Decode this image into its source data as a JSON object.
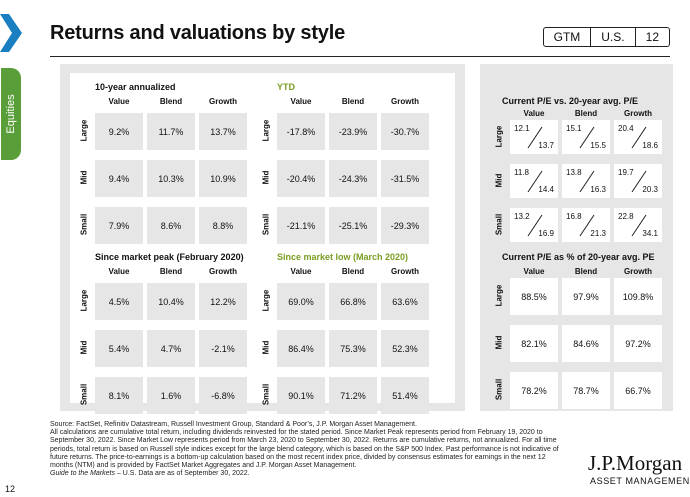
{
  "header": {
    "title": "Returns and valuations by style",
    "badges": [
      "GTM",
      "U.S.",
      "12"
    ]
  },
  "side_tab": "Equities",
  "page_number": "12",
  "columns": [
    "Value",
    "Blend",
    "Growth"
  ],
  "rows": [
    "Large",
    "Mid",
    "Small"
  ],
  "sections": {
    "annual10": {
      "title": "10-year annualized",
      "values": [
        [
          "9.2%",
          "11.7%",
          "13.7%"
        ],
        [
          "9.4%",
          "10.3%",
          "10.9%"
        ],
        [
          "7.9%",
          "8.6%",
          "8.8%"
        ]
      ]
    },
    "ytd": {
      "title": "YTD",
      "values": [
        [
          "-17.8%",
          "-23.9%",
          "-30.7%"
        ],
        [
          "-20.4%",
          "-24.3%",
          "-31.5%"
        ],
        [
          "-21.1%",
          "-25.1%",
          "-29.3%"
        ]
      ]
    },
    "peak": {
      "title": "Since market peak (February 2020)",
      "values": [
        [
          "4.5%",
          "10.4%",
          "12.2%"
        ],
        [
          "5.4%",
          "4.7%",
          "-2.1%"
        ],
        [
          "8.1%",
          "1.6%",
          "-6.8%"
        ]
      ]
    },
    "low": {
      "title": "Since market low (March 2020)",
      "values": [
        [
          "69.0%",
          "66.8%",
          "63.6%"
        ],
        [
          "86.4%",
          "75.3%",
          "52.3%"
        ],
        [
          "90.1%",
          "71.2%",
          "51.4%"
        ]
      ]
    }
  },
  "pe_vs_avg": {
    "title": "Current P/E vs. 20-year avg. P/E",
    "current": [
      [
        "12.1",
        "15.1",
        "20.4"
      ],
      [
        "11.8",
        "13.8",
        "19.7"
      ],
      [
        "13.2",
        "16.8",
        "22.8"
      ]
    ],
    "average": [
      [
        "13.7",
        "15.5",
        "18.6"
      ],
      [
        "14.4",
        "16.3",
        "20.3"
      ],
      [
        "16.9",
        "21.3",
        "34.1"
      ]
    ]
  },
  "pe_pct": {
    "title": "Current P/E as % of 20-year avg. PE",
    "values": [
      [
        "88.5%",
        "97.9%",
        "109.8%"
      ],
      [
        "82.1%",
        "84.6%",
        "97.2%"
      ],
      [
        "78.2%",
        "78.7%",
        "66.7%"
      ]
    ]
  },
  "footnote": {
    "source": "Source: FactSet, Refinitiv Datastream, Russell Investment Group, Standard & Poor’s, J.P. Morgan Asset Management.",
    "body": "All calculations are cumulative total return, including dividends reinvested for the stated period. Since Market Peak represents period from February 19, 2020 to September 30, 2022. Since Market Low represents period from March 23, 2020 to September 30, 2022. Returns are cumulative returns, not annualized. For all time periods, total return is based on Russell style indices except for the large blend category, which is based on the S&P 500 Index. Past performance is not indicative of future returns. The price-to-earnings is a bottom-up calculation based on the most recent index price, divided by consensus estimates for earnings in the next 12 months (NTM) and is provided by FactSet Market Aggregates and J.P. Morgan Asset Management.",
    "guide": "Guide to the Markets",
    "asof": " – U.S. Data are as of September 30, 2022."
  },
  "logo": {
    "line1": "J.P.Morgan",
    "line2": "ASSET MANAGEMENT"
  },
  "colors": {
    "accent_blue": "#1a7fc1",
    "tab_green": "#5a9e3a",
    "title_green": "#7a9e22",
    "cell_gray": "#e6e6e6"
  }
}
